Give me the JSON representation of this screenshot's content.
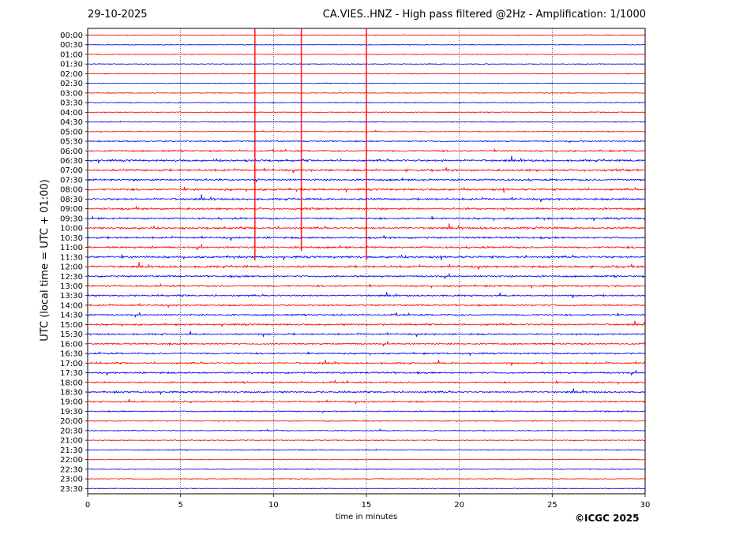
{
  "header": {
    "date": "29-10-2025",
    "title": "CA.VIES..HNZ - High pass filtered @2Hz - Amplification: 1/1000"
  },
  "footer": {
    "copyright": "©ICGC 2025"
  },
  "chart_data": {
    "type": "line",
    "title": "CA.VIES..HNZ - High pass filtered @2Hz - Amplification: 1/1000",
    "xlabel": "time in minutes",
    "ylabel": "UTC (local time = UTC + 01:00)",
    "xlim": [
      0,
      30
    ],
    "x_ticks": [
      "0",
      "5",
      "10",
      "15",
      "20",
      "25",
      "30"
    ],
    "x_tick_values": [
      0,
      5,
      10,
      15,
      20,
      25,
      30
    ],
    "vertical_gridlines": [
      5,
      10,
      15,
      20,
      25
    ],
    "grid_style": "dotted",
    "rows": [
      "00:00",
      "00:30",
      "01:00",
      "01:30",
      "02:00",
      "02:30",
      "03:00",
      "03:30",
      "04:00",
      "04:30",
      "05:00",
      "05:30",
      "06:00",
      "06:30",
      "07:00",
      "07:30",
      "08:00",
      "08:30",
      "09:00",
      "09:30",
      "10:00",
      "10:30",
      "11:00",
      "11:30",
      "12:00",
      "12:30",
      "13:00",
      "13:30",
      "14:00",
      "14:30",
      "15:00",
      "15:30",
      "16:00",
      "16:30",
      "17:00",
      "17:30",
      "18:00",
      "18:30",
      "19:00",
      "19:30",
      "20:00",
      "20:30",
      "21:00",
      "21:30",
      "22:00",
      "22:30",
      "23:00",
      "23:30"
    ],
    "row_colors": [
      "#ff0000",
      "#0000ff"
    ],
    "activity": [
      0.15,
      0.1,
      0.12,
      0.1,
      0.08,
      0.08,
      0.12,
      0.14,
      0.18,
      0.2,
      0.2,
      0.35,
      0.55,
      0.8,
      0.85,
      0.8,
      0.85,
      0.8,
      0.8,
      0.75,
      0.8,
      0.75,
      0.8,
      0.85,
      0.85,
      0.7,
      0.65,
      0.6,
      0.55,
      0.6,
      0.65,
      0.6,
      0.6,
      0.55,
      0.6,
      0.65,
      0.6,
      0.6,
      0.55,
      0.35,
      0.25,
      0.25,
      0.2,
      0.2,
      0.12,
      0.15,
      0.1,
      0.08
    ],
    "spikes_at_minutes": [
      9.0,
      11.5,
      15.0
    ]
  }
}
